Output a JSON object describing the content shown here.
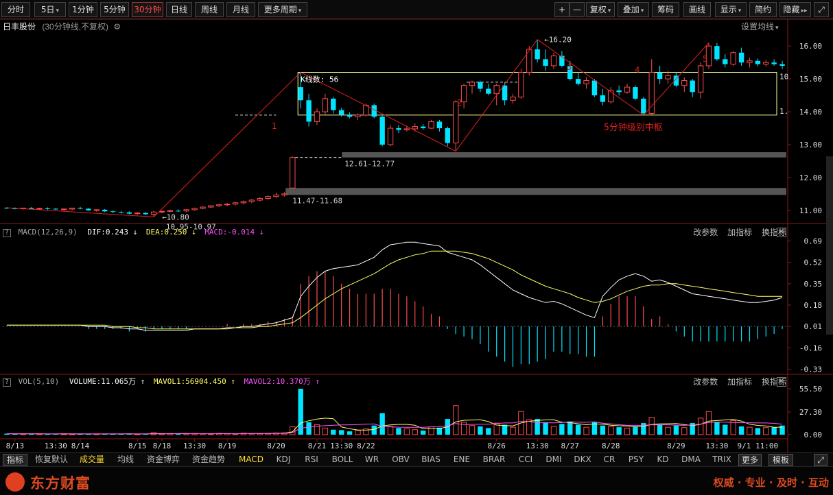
{
  "toolbar": {
    "periods": [
      "分时",
      "5日",
      "1分钟",
      "5分钟",
      "30分钟",
      "日线",
      "周线",
      "月线",
      "更多周期"
    ],
    "active_period": "30分钟",
    "right_buttons": [
      "+",
      "—",
      "复权",
      "叠加",
      "筹码",
      "画线",
      "显示",
      "简约",
      "隐藏"
    ]
  },
  "stock": {
    "name": "日丰股份",
    "info": "(30分钟线,不复权)",
    "setting_label": "设置均线"
  },
  "annotations": {
    "leg1": "1",
    "leg2": "2",
    "leg3": "3",
    "leg4": "4",
    "leg5": "5",
    "low_label": "10.80",
    "high_label": "16.20",
    "gap_low": "10.95-10.97",
    "gap_mid": "11.47-11.68",
    "gap_high": "12.61-12.77",
    "kline_count": "K线数: 56",
    "zone_label": "5分钟级别中枢",
    "box_right_top": "10",
    "box_right_bottom": "1."
  },
  "macd": {
    "title": "MACD(12,26,9)",
    "dif": "DIF:0.243",
    "dea": "DEA:0.250",
    "macd": "MACD:-0.014",
    "ticks": [
      "0.69",
      "0.52",
      "0.35",
      "0.18",
      "0.01",
      "-0.16",
      "-0.33"
    ]
  },
  "vol": {
    "title": "VOL(5,10)",
    "volume": "VOLUME:11.065万",
    "mavol1": "MAVOL1:56904.450",
    "mavol2": "MAVOL2:10.370万",
    "ticks": [
      "55.50",
      "27.30",
      "0.00"
    ]
  },
  "pane_tools": [
    "改参数",
    "加指标",
    "换指标"
  ],
  "colors": {
    "up": "#ff4d4d",
    "down": "#00e5ff",
    "dif": "#ffffff",
    "dea": "#ffff66",
    "mavol2": "#ff55ff",
    "box": "#ffff99"
  },
  "chart_data": {
    "type": "candlestick",
    "price_ticks": [
      "16.00",
      "15.00",
      "14.00",
      "13.00",
      "12.00",
      "11.00"
    ],
    "price_range": [
      10.6,
      16.4
    ],
    "date_labels": [
      "8/13",
      "13:30",
      "8/14",
      "8/15",
      "8/18",
      "13:30",
      "8/19",
      "8/20",
      "8/21",
      "13:30",
      "8/22",
      "8/26",
      "13:30",
      "8/27",
      "8/28",
      "8/29",
      "13:30",
      "9/1 11:00"
    ],
    "candles": [
      [
        11.08,
        11.1,
        11.04,
        11.06
      ],
      [
        11.06,
        11.09,
        11.03,
        11.05
      ],
      [
        11.05,
        11.08,
        11.02,
        11.07
      ],
      [
        11.07,
        11.1,
        11.03,
        11.04
      ],
      [
        11.04,
        11.08,
        11.01,
        11.06
      ],
      [
        11.06,
        11.09,
        11.02,
        11.05
      ],
      [
        11.05,
        11.07,
        11.01,
        11.03
      ],
      [
        11.03,
        11.06,
        10.99,
        11.04
      ],
      [
        11.04,
        11.08,
        11.0,
        11.07
      ],
      [
        11.07,
        11.11,
        11.03,
        11.05
      ],
      [
        11.05,
        11.07,
        10.98,
        11.0
      ],
      [
        11.0,
        11.03,
        10.96,
        11.02
      ],
      [
        11.02,
        11.04,
        10.95,
        10.97
      ],
      [
        10.97,
        11.0,
        10.92,
        10.95
      ],
      [
        10.95,
        10.98,
        10.9,
        10.94
      ],
      [
        10.94,
        10.97,
        10.88,
        10.9
      ],
      [
        10.9,
        10.94,
        10.86,
        10.92
      ],
      [
        10.92,
        10.95,
        10.86,
        10.88
      ],
      [
        10.88,
        10.98,
        10.8,
        10.95
      ],
      [
        10.95,
        11.0,
        10.91,
        10.97
      ],
      [
        10.97,
        11.02,
        10.94,
        10.99
      ],
      [
        10.99,
        11.03,
        10.95,
        10.98
      ],
      [
        10.98,
        11.04,
        10.95,
        11.02
      ],
      [
        11.02,
        11.08,
        10.99,
        11.06
      ],
      [
        11.06,
        11.12,
        11.03,
        11.1
      ],
      [
        11.1,
        11.16,
        11.07,
        11.14
      ],
      [
        11.14,
        11.2,
        11.1,
        11.17
      ],
      [
        11.17,
        11.22,
        11.12,
        11.19
      ],
      [
        11.19,
        11.26,
        11.15,
        11.23
      ],
      [
        11.23,
        11.3,
        11.18,
        11.27
      ],
      [
        11.27,
        11.35,
        11.22,
        11.31
      ],
      [
        11.31,
        11.4,
        11.27,
        11.36
      ],
      [
        11.36,
        11.45,
        11.32,
        11.42
      ],
      [
        11.42,
        11.54,
        11.38,
        11.47
      ],
      [
        11.47,
        11.55,
        11.42,
        11.5
      ],
      [
        11.68,
        12.64,
        11.68,
        12.61
      ],
      [
        14.75,
        15.2,
        14.1,
        14.35
      ],
      [
        14.35,
        14.55,
        13.55,
        13.7
      ],
      [
        13.7,
        14.1,
        13.6,
        14.0
      ],
      [
        14.0,
        14.55,
        13.9,
        14.4
      ],
      [
        14.4,
        14.45,
        13.95,
        14.05
      ],
      [
        14.05,
        14.12,
        13.85,
        13.9
      ],
      [
        13.9,
        13.98,
        13.8,
        13.85
      ],
      [
        13.85,
        13.95,
        13.75,
        13.9
      ],
      [
        13.9,
        14.25,
        13.85,
        14.2
      ],
      [
        14.2,
        14.25,
        13.8,
        13.85
      ],
      [
        13.85,
        13.88,
        12.95,
        13.0
      ],
      [
        13.0,
        13.6,
        12.95,
        13.5
      ],
      [
        13.5,
        13.6,
        13.35,
        13.45
      ],
      [
        13.45,
        13.55,
        13.4,
        13.48
      ],
      [
        13.48,
        13.65,
        13.4,
        13.55
      ],
      [
        13.55,
        13.62,
        13.45,
        13.5
      ],
      [
        13.5,
        13.75,
        13.48,
        13.7
      ],
      [
        13.7,
        13.75,
        13.4,
        13.5
      ],
      [
        13.5,
        13.55,
        12.95,
        13.05
      ],
      [
        13.05,
        14.35,
        12.8,
        14.3
      ],
      [
        14.3,
        14.85,
        14.1,
        14.8
      ],
      [
        14.8,
        14.95,
        14.55,
        14.9
      ],
      [
        14.9,
        14.95,
        14.6,
        14.7
      ],
      [
        14.7,
        14.85,
        14.5,
        14.55
      ],
      [
        14.55,
        14.85,
        14.2,
        14.8
      ],
      [
        14.8,
        14.9,
        14.2,
        14.35
      ],
      [
        14.35,
        14.55,
        14.25,
        14.45
      ],
      [
        14.45,
        15.3,
        14.4,
        15.2
      ],
      [
        15.2,
        16.0,
        15.1,
        15.9
      ],
      [
        15.9,
        16.2,
        15.5,
        15.6
      ],
      [
        15.6,
        15.9,
        15.25,
        15.4
      ],
      [
        15.4,
        15.8,
        15.3,
        15.7
      ],
      [
        15.7,
        15.85,
        15.35,
        15.4
      ],
      [
        15.4,
        15.55,
        14.95,
        15.0
      ],
      [
        15.0,
        15.2,
        14.8,
        14.85
      ],
      [
        14.85,
        15.05,
        14.7,
        14.95
      ],
      [
        14.95,
        15.0,
        14.45,
        14.5
      ],
      [
        14.5,
        14.7,
        14.2,
        14.3
      ],
      [
        14.3,
        14.75,
        14.25,
        14.65
      ],
      [
        14.65,
        14.8,
        14.5,
        14.6
      ],
      [
        14.6,
        14.85,
        14.55,
        14.75
      ],
      [
        14.75,
        14.8,
        14.35,
        14.4
      ],
      [
        14.4,
        14.45,
        13.9,
        13.95
      ],
      [
        13.95,
        15.6,
        13.9,
        15.2
      ],
      [
        15.2,
        15.4,
        14.85,
        15.0
      ],
      [
        15.0,
        15.25,
        14.85,
        15.1
      ],
      [
        15.1,
        15.2,
        14.75,
        14.8
      ],
      [
        14.8,
        15.05,
        14.6,
        14.95
      ],
      [
        14.95,
        15.0,
        14.45,
        14.6
      ],
      [
        14.6,
        15.5,
        14.4,
        15.4
      ],
      [
        15.4,
        16.1,
        15.3,
        16.0
      ],
      [
        16.0,
        16.1,
        15.55,
        15.6
      ],
      [
        15.6,
        15.75,
        15.35,
        15.45
      ],
      [
        15.45,
        15.85,
        15.4,
        15.8
      ],
      [
        15.8,
        15.95,
        15.4,
        15.5
      ],
      [
        15.5,
        15.65,
        15.35,
        15.55
      ],
      [
        15.55,
        15.62,
        15.38,
        15.45
      ],
      [
        15.45,
        15.58,
        15.38,
        15.5
      ],
      [
        15.5,
        15.6,
        15.4,
        15.45
      ],
      [
        15.45,
        15.55,
        15.3,
        15.4
      ]
    ],
    "macd_range": [
      -0.36,
      0.72
    ],
    "dif": [
      0.02,
      0.02,
      0.02,
      0.02,
      0.02,
      0.02,
      0.02,
      0.02,
      0.02,
      0.02,
      0.01,
      0.01,
      0.01,
      0.0,
      0.0,
      -0.01,
      -0.01,
      -0.02,
      -0.02,
      -0.02,
      -0.02,
      -0.02,
      -0.02,
      -0.01,
      -0.01,
      -0.01,
      -0.01,
      -0.0,
      0.0,
      0.01,
      0.01,
      0.02,
      0.03,
      0.04,
      0.06,
      0.08,
      0.25,
      0.33,
      0.4,
      0.45,
      0.47,
      0.48,
      0.49,
      0.5,
      0.53,
      0.56,
      0.62,
      0.66,
      0.67,
      0.68,
      0.68,
      0.67,
      0.66,
      0.65,
      0.6,
      0.58,
      0.56,
      0.54,
      0.5,
      0.45,
      0.4,
      0.35,
      0.3,
      0.27,
      0.24,
      0.22,
      0.2,
      0.21,
      0.19,
      0.16,
      0.13,
      0.1,
      0.08,
      0.25,
      0.32,
      0.38,
      0.41,
      0.43,
      0.41,
      0.37,
      0.38,
      0.36,
      0.33,
      0.3,
      0.27,
      0.26,
      0.25,
      0.24,
      0.23,
      0.22,
      0.21,
      0.2,
      0.2,
      0.21,
      0.22,
      0.24
    ],
    "dea": [
      0.02,
      0.02,
      0.02,
      0.02,
      0.02,
      0.02,
      0.02,
      0.02,
      0.02,
      0.02,
      0.02,
      0.02,
      0.02,
      0.01,
      0.01,
      0.01,
      0.0,
      -0.0,
      -0.01,
      -0.01,
      -0.01,
      -0.01,
      -0.01,
      -0.01,
      -0.01,
      -0.01,
      -0.01,
      -0.01,
      -0.0,
      0.0,
      0.0,
      0.01,
      0.01,
      0.02,
      0.03,
      0.04,
      0.08,
      0.13,
      0.18,
      0.23,
      0.27,
      0.31,
      0.34,
      0.37,
      0.4,
      0.43,
      0.47,
      0.51,
      0.54,
      0.56,
      0.58,
      0.59,
      0.61,
      0.61,
      0.61,
      0.61,
      0.6,
      0.59,
      0.57,
      0.55,
      0.52,
      0.49,
      0.46,
      0.42,
      0.39,
      0.36,
      0.33,
      0.31,
      0.29,
      0.27,
      0.24,
      0.22,
      0.2,
      0.21,
      0.23,
      0.26,
      0.29,
      0.31,
      0.33,
      0.34,
      0.34,
      0.35,
      0.35,
      0.34,
      0.33,
      0.32,
      0.31,
      0.3,
      0.29,
      0.28,
      0.27,
      0.26,
      0.25,
      0.25,
      0.25,
      0.25
    ],
    "vol_range": [
      0,
      58
    ],
    "volume": [
      1.2,
      0.9,
      1.1,
      0.8,
      1.0,
      0.7,
      0.9,
      1.2,
      0.8,
      1.0,
      0.7,
      0.9,
      1.1,
      0.8,
      0.9,
      1.2,
      0.7,
      0.8,
      2.5,
      1.0,
      1.4,
      0.9,
      1.2,
      1.5,
      1.1,
      0.9,
      1.6,
      1.3,
      1.0,
      1.8,
      1.2,
      1.5,
      1.6,
      2.0,
      2.2,
      9.5,
      55.5,
      15.0,
      12.0,
      8.0,
      6.0,
      5.5,
      4.0,
      5.0,
      7.0,
      11.0,
      26.0,
      10.0,
      8.0,
      7.0,
      6.0,
      5.0,
      9.5,
      8.5,
      19.0,
      35.0,
      15.0,
      11.0,
      10.0,
      8.0,
      14.0,
      12.0,
      9.0,
      28.0,
      18.0,
      19.0,
      15.0,
      10.0,
      13.0,
      16.0,
      12.0,
      9.0,
      15.0,
      11.0,
      10.0,
      9.0,
      8.0,
      10.0,
      14.0,
      21.0,
      12.0,
      9.0,
      11.0,
      8.5,
      14.0,
      20.0,
      28.0,
      15.0,
      12.0,
      17.0,
      10.0,
      9.0,
      8.0,
      8.5,
      9.0,
      11.0
    ]
  }
}
